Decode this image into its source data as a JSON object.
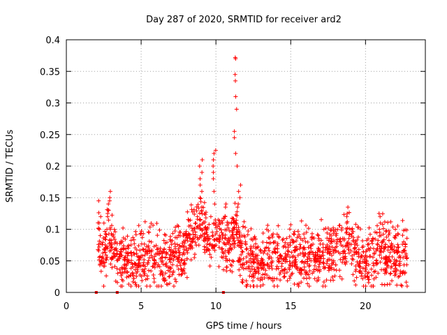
{
  "chart_data": {
    "type": "scatter",
    "title": "Day 287 of 2020, SRMTID for receiver ard2",
    "xlabel": "GPS time / hours",
    "ylabel": "SRMTID / TECUs",
    "xlim": [
      0,
      24
    ],
    "ylim": [
      0,
      0.4
    ],
    "grid": true,
    "x_ticks": [
      0,
      5,
      10,
      15,
      20
    ],
    "y_ticks": [
      0,
      0.05,
      0.1,
      0.15,
      0.2,
      0.25,
      0.3,
      0.35,
      0.4
    ],
    "x_tick_labels": [
      "0",
      "5",
      "10",
      "15",
      "20"
    ],
    "y_tick_labels": [
      "0",
      "0.05",
      "0.1",
      "0.15",
      "0.2",
      "0.25",
      "0.3",
      "0.35",
      "0.4"
    ],
    "marker": "+",
    "marker_color": "#ff0000",
    "series": [
      {
        "name": "ard2",
        "profile_x": [
          2.0,
          2.2,
          2.5,
          2.8,
          3.0,
          3.3,
          3.6,
          4.0,
          4.5,
          5.0,
          5.5,
          6.0,
          6.5,
          7.0,
          7.5,
          8.0,
          8.5,
          8.8,
          9.2,
          9.6,
          10.0,
          10.4,
          10.8,
          11.2,
          11.4,
          11.6,
          12.0,
          12.5,
          13.0,
          13.5,
          14.0,
          14.5,
          15.0,
          15.5,
          16.0,
          16.5,
          17.0,
          17.5,
          18.0,
          18.5,
          19.0,
          19.5,
          20.0,
          20.5,
          21.0,
          21.5,
          22.0,
          22.8
        ],
        "profile_y": [
          0.05,
          0.08,
          0.06,
          0.09,
          0.07,
          0.06,
          0.055,
          0.05,
          0.045,
          0.055,
          0.06,
          0.05,
          0.05,
          0.055,
          0.06,
          0.07,
          0.09,
          0.12,
          0.09,
          0.08,
          0.1,
          0.08,
          0.07,
          0.09,
          0.12,
          0.07,
          0.05,
          0.045,
          0.05,
          0.055,
          0.06,
          0.055,
          0.055,
          0.06,
          0.065,
          0.06,
          0.055,
          0.06,
          0.07,
          0.065,
          0.08,
          0.06,
          0.05,
          0.055,
          0.07,
          0.06,
          0.06,
          0.06
        ],
        "spread": 0.028,
        "sample_count": 1700,
        "x_range": [
          2.1,
          22.8
        ],
        "peaks": [
          {
            "x": 2.85,
            "values": [
              0.12,
              0.13,
              0.14,
              0.15,
              0.16,
              0.145,
              0.125
            ]
          },
          {
            "x": 2.25,
            "values": [
              0.145,
              0.12,
              0.11,
              0.1
            ]
          },
          {
            "x": 9.0,
            "values": [
              0.13,
              0.15,
              0.17,
              0.19,
              0.21,
              0.2,
              0.18,
              0.16
            ]
          },
          {
            "x": 9.9,
            "values": [
              0.14,
              0.16,
              0.18,
              0.2,
              0.22,
              0.225,
              0.21,
              0.19
            ]
          },
          {
            "x": 10.6,
            "values": [
              0.12,
              0.135,
              0.14
            ]
          },
          {
            "x": 11.35,
            "values": [
              0.2,
              0.22,
              0.245,
              0.255,
              0.29,
              0.31,
              0.335,
              0.345,
              0.37,
              0.372
            ]
          },
          {
            "x": 11.55,
            "values": [
              0.14,
              0.15,
              0.16,
              0.17,
              0.135
            ]
          },
          {
            "x": 18.8,
            "values": [
              0.11,
              0.12,
              0.125,
              0.135
            ]
          },
          {
            "x": 21.0,
            "values": [
              0.1,
              0.11,
              0.12,
              0.125
            ]
          }
        ],
        "zeros": [
          2.0,
          3.4,
          10.5
        ]
      }
    ]
  }
}
